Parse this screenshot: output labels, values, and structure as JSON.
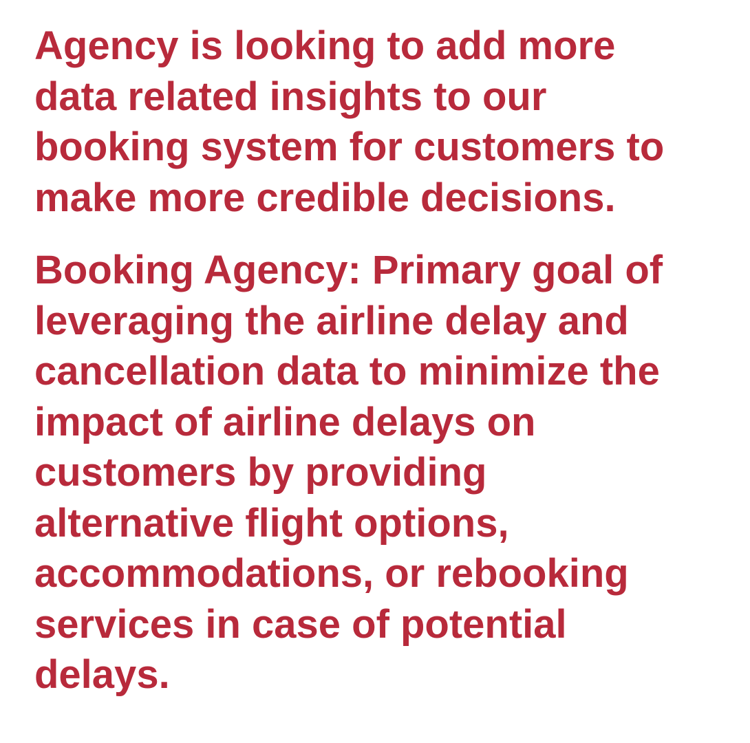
{
  "colors": {
    "text": "#B82A3B",
    "background": "#FFFFFF"
  },
  "paragraphs": [
    {
      "lines": [
        "Agency is looking to add more",
        "data related insights to our",
        "booking system for customers to",
        "make more credible decisions."
      ]
    },
    {
      "lines": [
        "Booking Agency: Primary goal of",
        "leveraging the airline delay and",
        "cancellation data to minimize the",
        "impact of airline delays on",
        "customers by providing",
        "alternative flight options,",
        "accommodations, or rebooking",
        "services in case of potential",
        "delays."
      ]
    }
  ]
}
